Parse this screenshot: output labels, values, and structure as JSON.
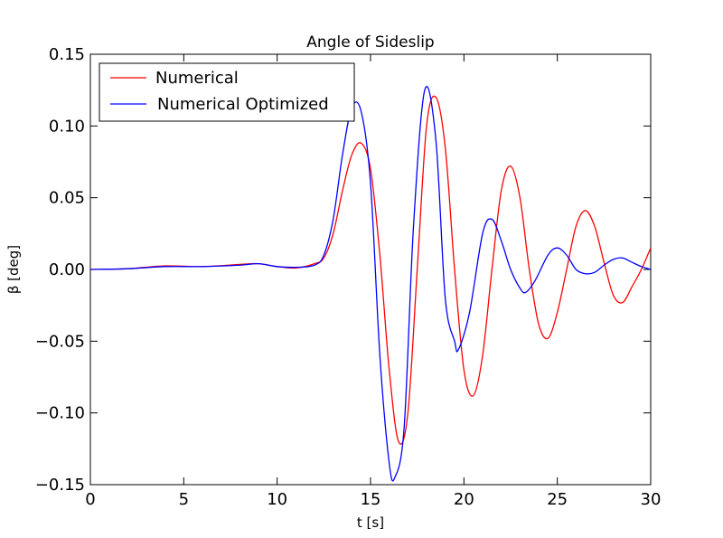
{
  "chart_data": {
    "type": "line",
    "title": "Angle of Sideslip",
    "xlabel": "t [s]",
    "ylabel": "β [deg]",
    "xlim": [
      0,
      30
    ],
    "ylim": [
      -0.15,
      0.15
    ],
    "xticks": [
      "0",
      "5",
      "10",
      "15",
      "20",
      "25",
      "30"
    ],
    "yticks": [
      "−0.15",
      "−0.10",
      "−0.05",
      "0.00",
      "0.05",
      "0.10",
      "0.15"
    ],
    "grid": false,
    "legend_position": "top-left",
    "series": [
      {
        "name": "Numerical",
        "color": "#ff0000",
        "x": [
          0,
          2,
          4,
          6,
          8,
          9,
          10,
          11,
          12,
          12.5,
          13,
          13.5,
          14,
          14.5,
          15,
          15.5,
          16,
          16.5,
          17,
          17.5,
          18,
          18.5,
          19,
          19.5,
          20,
          20.5,
          21,
          21.5,
          22,
          22.5,
          23,
          23.5,
          24,
          24.5,
          25,
          25.5,
          26,
          26.5,
          27,
          27.5,
          28,
          28.5,
          29,
          29.5,
          30
        ],
        "y": [
          0.0,
          0.0005,
          0.0025,
          0.002,
          0.0035,
          0.004,
          0.002,
          0.001,
          0.004,
          0.008,
          0.025,
          0.055,
          0.08,
          0.088,
          0.07,
          0.01,
          -0.07,
          -0.12,
          -0.1,
          0.0,
          0.1,
          0.12,
          0.085,
          0.0,
          -0.07,
          -0.088,
          -0.06,
          0.0,
          0.055,
          0.072,
          0.05,
          0.0,
          -0.038,
          -0.048,
          -0.03,
          0.0,
          0.03,
          0.041,
          0.03,
          0.005,
          -0.018,
          -0.023,
          -0.012,
          0.0,
          0.015
        ]
      },
      {
        "name": "Numerical Optimized",
        "color": "#0000ff",
        "x": [
          0,
          2,
          4,
          6,
          8,
          9,
          10,
          11,
          12,
          12.5,
          13,
          13.5,
          14,
          14.5,
          15,
          15.5,
          16,
          16.3,
          16.8,
          17.3,
          17.9,
          18.5,
          19,
          19.5,
          19.7,
          20.3,
          21,
          21.5,
          22,
          22.5,
          23,
          23.3,
          23.8,
          24.5,
          25,
          25.5,
          26,
          26.5,
          27,
          27.5,
          28,
          28.5,
          29,
          29.5,
          30
        ],
        "y": [
          0.0,
          0.0005,
          0.002,
          0.002,
          0.003,
          0.004,
          0.002,
          0.0015,
          0.003,
          0.01,
          0.035,
          0.08,
          0.113,
          0.11,
          0.06,
          -0.06,
          -0.135,
          -0.145,
          -0.11,
          0.03,
          0.125,
          0.09,
          -0.02,
          -0.05,
          -0.056,
          -0.03,
          0.025,
          0.035,
          0.02,
          0.0,
          -0.013,
          -0.016,
          -0.008,
          0.01,
          0.015,
          0.01,
          0.0,
          -0.003,
          -0.002,
          0.003,
          0.007,
          0.008,
          0.005,
          0.002,
          0.0
        ]
      }
    ]
  }
}
